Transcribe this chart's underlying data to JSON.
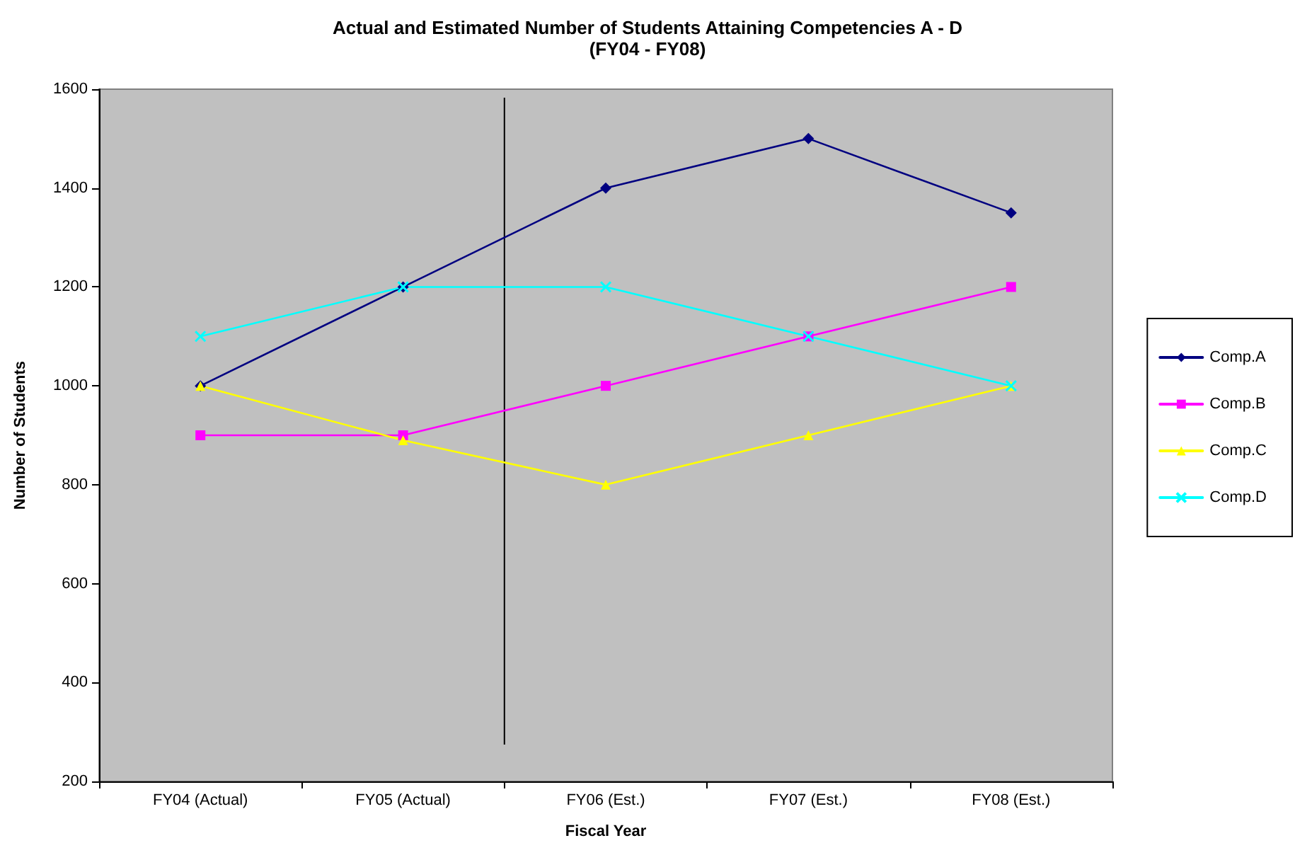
{
  "chart_data": {
    "type": "line",
    "title": "Actual and Estimated Number of Students Attaining Competencies A - D",
    "subtitle": "(FY04 - FY08)",
    "xlabel": "Fiscal Year",
    "ylabel": "Number of Students",
    "categories": [
      "FY04 (Actual)",
      "FY05 (Actual)",
      "FY06 (Est.)",
      "FY07 (Est.)",
      "FY08 (Est.)"
    ],
    "series": [
      {
        "name": "Comp.A",
        "color": "#000080",
        "marker": "diamond",
        "values": [
          1000,
          1200,
          1400,
          1500,
          1350
        ]
      },
      {
        "name": "Comp.B",
        "color": "#ff00ff",
        "marker": "square",
        "values": [
          900,
          900,
          1000,
          1100,
          1200
        ]
      },
      {
        "name": "Comp.C",
        "color": "#ffff00",
        "marker": "triangle",
        "values": [
          1000,
          890,
          800,
          900,
          1000
        ]
      },
      {
        "name": "Comp.D",
        "color": "#00ffff",
        "marker": "cross",
        "values": [
          1100,
          1200,
          1200,
          1100,
          1000
        ]
      }
    ],
    "ylim": [
      200,
      1600
    ],
    "yticks": [
      200,
      400,
      600,
      800,
      1000,
      1200,
      1400,
      1600
    ],
    "grid": false,
    "legend": "right",
    "line_style": "solid"
  }
}
